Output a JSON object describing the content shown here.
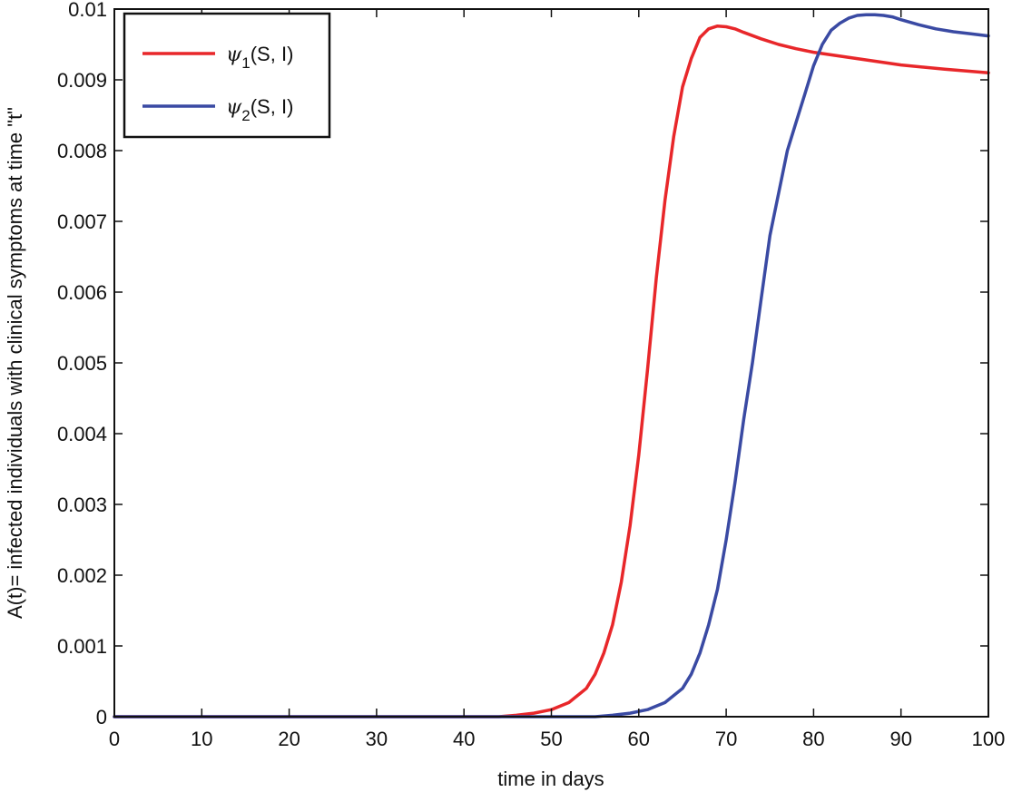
{
  "chart_data": {
    "type": "line",
    "title": "",
    "xlabel": "time in days",
    "ylabel": "A(t)= infected individuals with clinical symptoms at time \"t\"",
    "xlim": [
      0,
      100
    ],
    "ylim": [
      0,
      0.01
    ],
    "xticks": [
      0,
      10,
      20,
      30,
      40,
      50,
      60,
      70,
      80,
      90,
      100
    ],
    "yticks": [
      0,
      0.001,
      0.002,
      0.003,
      0.004,
      0.005,
      0.006,
      0.007,
      0.008,
      0.009,
      0.01
    ],
    "xtick_labels": [
      "0",
      "10",
      "20",
      "30",
      "40",
      "50",
      "60",
      "70",
      "80",
      "90",
      "100"
    ],
    "ytick_labels": [
      "0",
      "0.001",
      "0.002",
      "0.003",
      "0.004",
      "0.005",
      "0.006",
      "0.007",
      "0.008",
      "0.009",
      "0.01"
    ],
    "grid": false,
    "legend_position": "top-left",
    "series": [
      {
        "name": "ψ1(S, I)",
        "symbol": "ψ",
        "subscript": "1",
        "args": "(S, I)",
        "color": "#e8272a",
        "x": [
          0,
          44,
          46,
          48,
          50,
          52,
          54,
          55,
          56,
          57,
          58,
          59,
          60,
          61,
          62,
          63,
          64,
          65,
          66,
          67,
          68,
          69,
          70,
          71,
          72,
          74,
          76,
          78,
          80,
          85,
          90,
          95,
          100
        ],
        "y": [
          0,
          0,
          2e-05,
          5e-05,
          0.0001,
          0.0002,
          0.0004,
          0.0006,
          0.0009,
          0.0013,
          0.0019,
          0.0027,
          0.0037,
          0.0049,
          0.0062,
          0.0073,
          0.0082,
          0.0089,
          0.0093,
          0.0096,
          0.00972,
          0.00976,
          0.00975,
          0.00972,
          0.00967,
          0.00958,
          0.0095,
          0.00944,
          0.00939,
          0.0093,
          0.00921,
          0.00915,
          0.0091
        ]
      },
      {
        "name": "ψ2(S, I)",
        "symbol": "ψ",
        "subscript": "2",
        "args": "(S, I)",
        "color": "#3a4aa3",
        "x": [
          0,
          55,
          57,
          59,
          61,
          63,
          65,
          66,
          67,
          68,
          69,
          70,
          71,
          72,
          73,
          74,
          75,
          76,
          77,
          78,
          79,
          80,
          81,
          82,
          83,
          84,
          85,
          86,
          87,
          88,
          89,
          90,
          92,
          94,
          96,
          98,
          100
        ],
        "y": [
          0,
          0,
          2e-05,
          5e-05,
          0.0001,
          0.0002,
          0.0004,
          0.0006,
          0.0009,
          0.0013,
          0.0018,
          0.0025,
          0.0033,
          0.0042,
          0.005,
          0.0059,
          0.0068,
          0.0074,
          0.008,
          0.0084,
          0.0088,
          0.0092,
          0.0095,
          0.0097,
          0.0098,
          0.00987,
          0.00991,
          0.00992,
          0.00992,
          0.00991,
          0.00989,
          0.00985,
          0.00978,
          0.00972,
          0.00968,
          0.00965,
          0.00962
        ]
      }
    ]
  }
}
